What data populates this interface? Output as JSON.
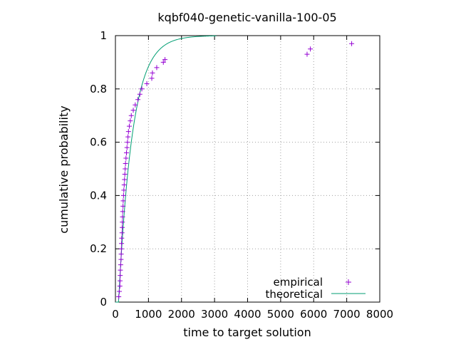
{
  "chart_data": {
    "type": "scatter",
    "title": "kqbf040-genetic-vanilla-100-05",
    "xlabel": "time to target solution",
    "ylabel": "cumulative probability",
    "xlim": [
      0,
      8000
    ],
    "ylim": [
      0,
      1
    ],
    "xticks": [
      "0",
      "1000",
      "2000",
      "3000",
      "4000",
      "5000",
      "6000",
      "7000",
      "8000"
    ],
    "yticks": [
      "0",
      "0.2",
      "0.4",
      "0.6",
      "0.8",
      "1"
    ],
    "grid": true,
    "legend_position": "bottom-right",
    "series": [
      {
        "name": "empirical",
        "kind": "points",
        "marker": "+",
        "color": "#9400d3",
        "points": [
          [
            100,
            0.02
          ],
          [
            120,
            0.04
          ],
          [
            135,
            0.06
          ],
          [
            140,
            0.08
          ],
          [
            145,
            0.1
          ],
          [
            150,
            0.12
          ],
          [
            160,
            0.14
          ],
          [
            170,
            0.16
          ],
          [
            175,
            0.18
          ],
          [
            180,
            0.2
          ],
          [
            185,
            0.22
          ],
          [
            190,
            0.24
          ],
          [
            200,
            0.26
          ],
          [
            205,
            0.28
          ],
          [
            210,
            0.3
          ],
          [
            215,
            0.32
          ],
          [
            220,
            0.34
          ],
          [
            230,
            0.36
          ],
          [
            235,
            0.38
          ],
          [
            245,
            0.4
          ],
          [
            255,
            0.42
          ],
          [
            265,
            0.44
          ],
          [
            275,
            0.46
          ],
          [
            285,
            0.48
          ],
          [
            295,
            0.5
          ],
          [
            305,
            0.52
          ],
          [
            320,
            0.54
          ],
          [
            335,
            0.56
          ],
          [
            350,
            0.58
          ],
          [
            365,
            0.6
          ],
          [
            380,
            0.62
          ],
          [
            395,
            0.64
          ],
          [
            420,
            0.66
          ],
          [
            450,
            0.68
          ],
          [
            480,
            0.7
          ],
          [
            540,
            0.72
          ],
          [
            600,
            0.74
          ],
          [
            680,
            0.76
          ],
          [
            740,
            0.78
          ],
          [
            800,
            0.8
          ],
          [
            950,
            0.82
          ],
          [
            1100,
            0.84
          ],
          [
            1120,
            0.86
          ],
          [
            1250,
            0.88
          ],
          [
            1450,
            0.9
          ],
          [
            1500,
            0.91
          ],
          [
            5800,
            0.93
          ],
          [
            5900,
            0.95
          ],
          [
            7150,
            0.97
          ]
        ]
      },
      {
        "name": "theoretical",
        "kind": "line",
        "color": "#009e73",
        "shift": 95,
        "mean": 420,
        "x_range": [
          0,
          3050
        ]
      }
    ]
  }
}
